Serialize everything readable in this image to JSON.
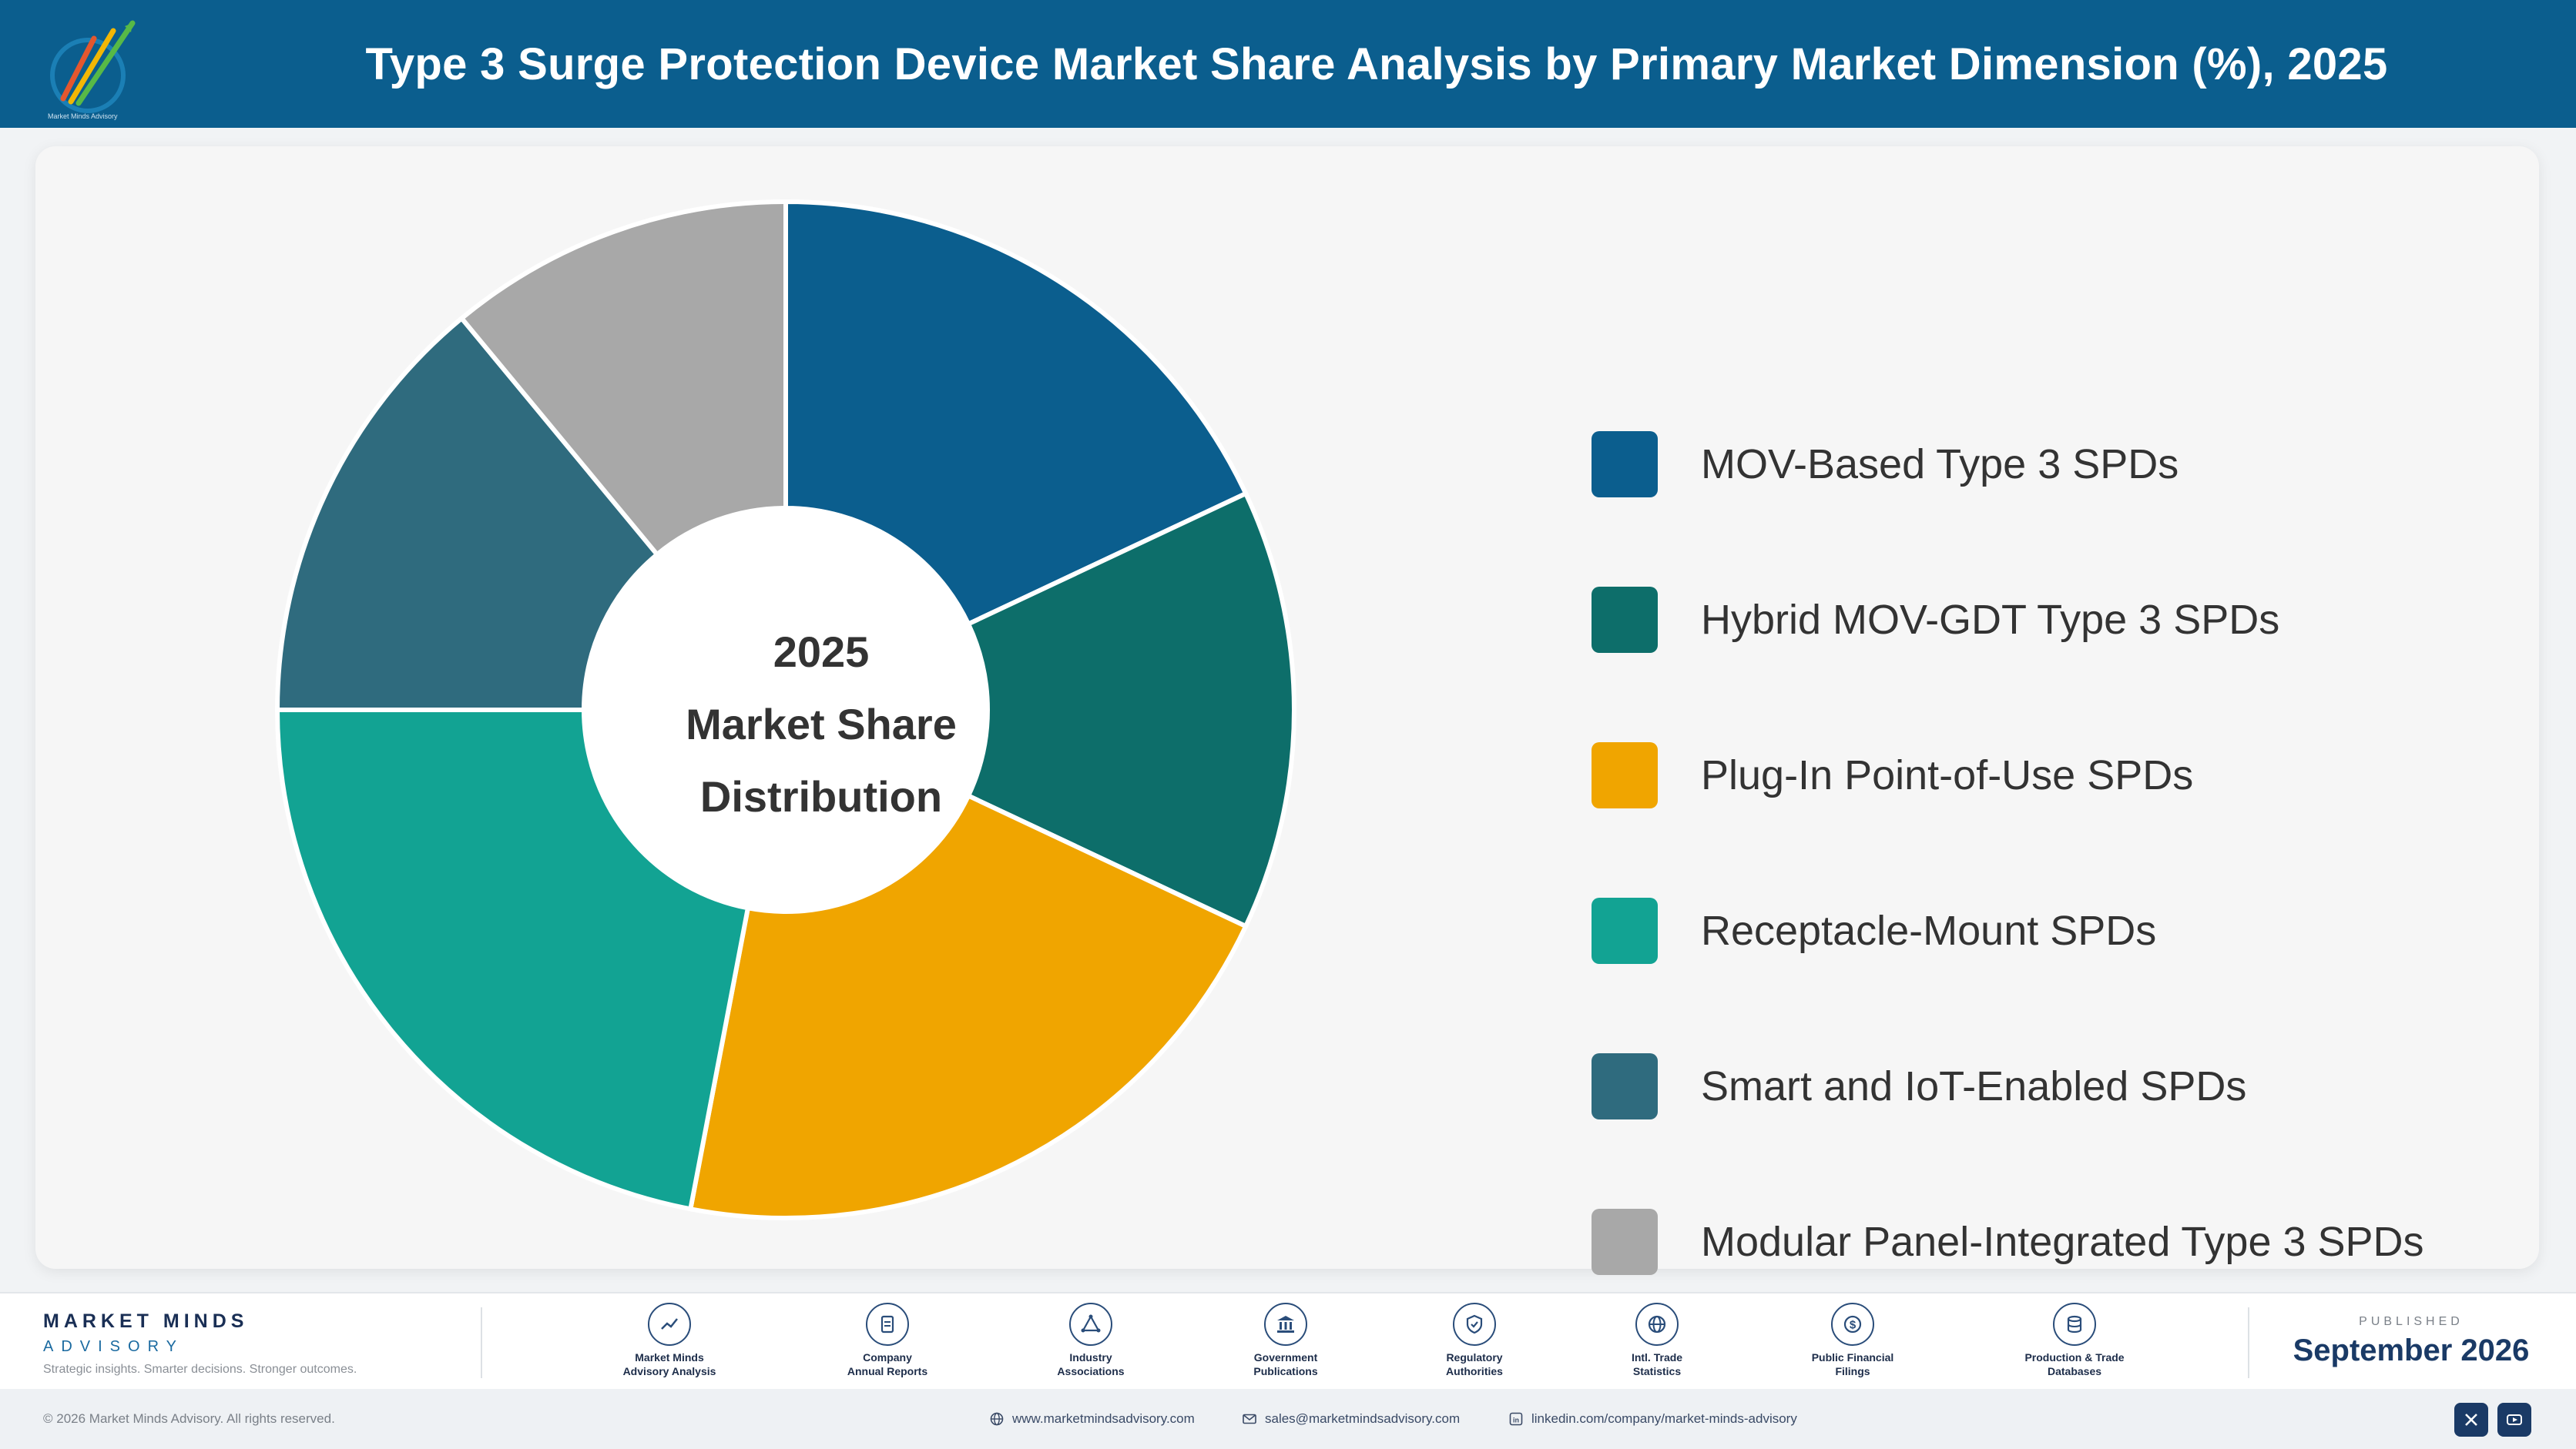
{
  "header": {
    "title": "Type 3 Surge Protection Device Market Share Analysis by Primary Market Dimension (%), 2025"
  },
  "chart_data": {
    "type": "pie",
    "subtype": "donut",
    "title": "Type 3 Surge Protection Device Market Share Analysis by Primary Market Dimension (%), 2025",
    "center_label": [
      "2025",
      "Market Share",
      "Distribution"
    ],
    "legend_position": "right",
    "categories": [
      "MOV-Based Type 3 SPDs",
      "Hybrid MOV-GDT Type 3 SPDs",
      "Plug-In Point-of-Use SPDs",
      "Receptacle-Mount SPDs",
      "Smart and IoT-Enabled SPDs",
      "Modular Panel-Integrated Type 3 SPDs"
    ],
    "values": [
      18,
      14,
      21,
      22,
      14,
      11
    ],
    "colors": [
      "#0b5e8e",
      "#0d6e6a",
      "#f0a500",
      "#12a393",
      "#2f6b7e",
      "#a8a8a8"
    ]
  },
  "footer": {
    "brand_name": "MARKET MINDS",
    "brand_sub": "ADVISORY",
    "brand_tagline": "Strategic insights. Smarter decisions. Stronger outcomes.",
    "sources": [
      {
        "label1": "Market Minds",
        "label2": "Advisory Analysis",
        "icon": "chart-line-icon"
      },
      {
        "label1": "Company",
        "label2": "Annual Reports",
        "icon": "document-icon"
      },
      {
        "label1": "Industry",
        "label2": "Associations",
        "icon": "network-icon"
      },
      {
        "label1": "Government",
        "label2": "Publications",
        "icon": "building-icon"
      },
      {
        "label1": "Regulatory",
        "label2": "Authorities",
        "icon": "shield-icon"
      },
      {
        "label1": "Intl. Trade",
        "label2": "Statistics",
        "icon": "globe-icon"
      },
      {
        "label1": "Public Financial",
        "label2": "Filings",
        "icon": "dollar-icon"
      },
      {
        "label1": "Production & Trade",
        "label2": "Databases",
        "icon": "database-icon"
      }
    ],
    "published_label": "PUBLISHED",
    "published_date": "September 2026",
    "copyright": "© 2026 Market Minds Advisory. All rights reserved.",
    "website": "www.marketmindsadvisory.com",
    "email": "sales@marketmindsadvisory.com",
    "linkedin": "linkedin.com/company/market-minds-advisory"
  }
}
